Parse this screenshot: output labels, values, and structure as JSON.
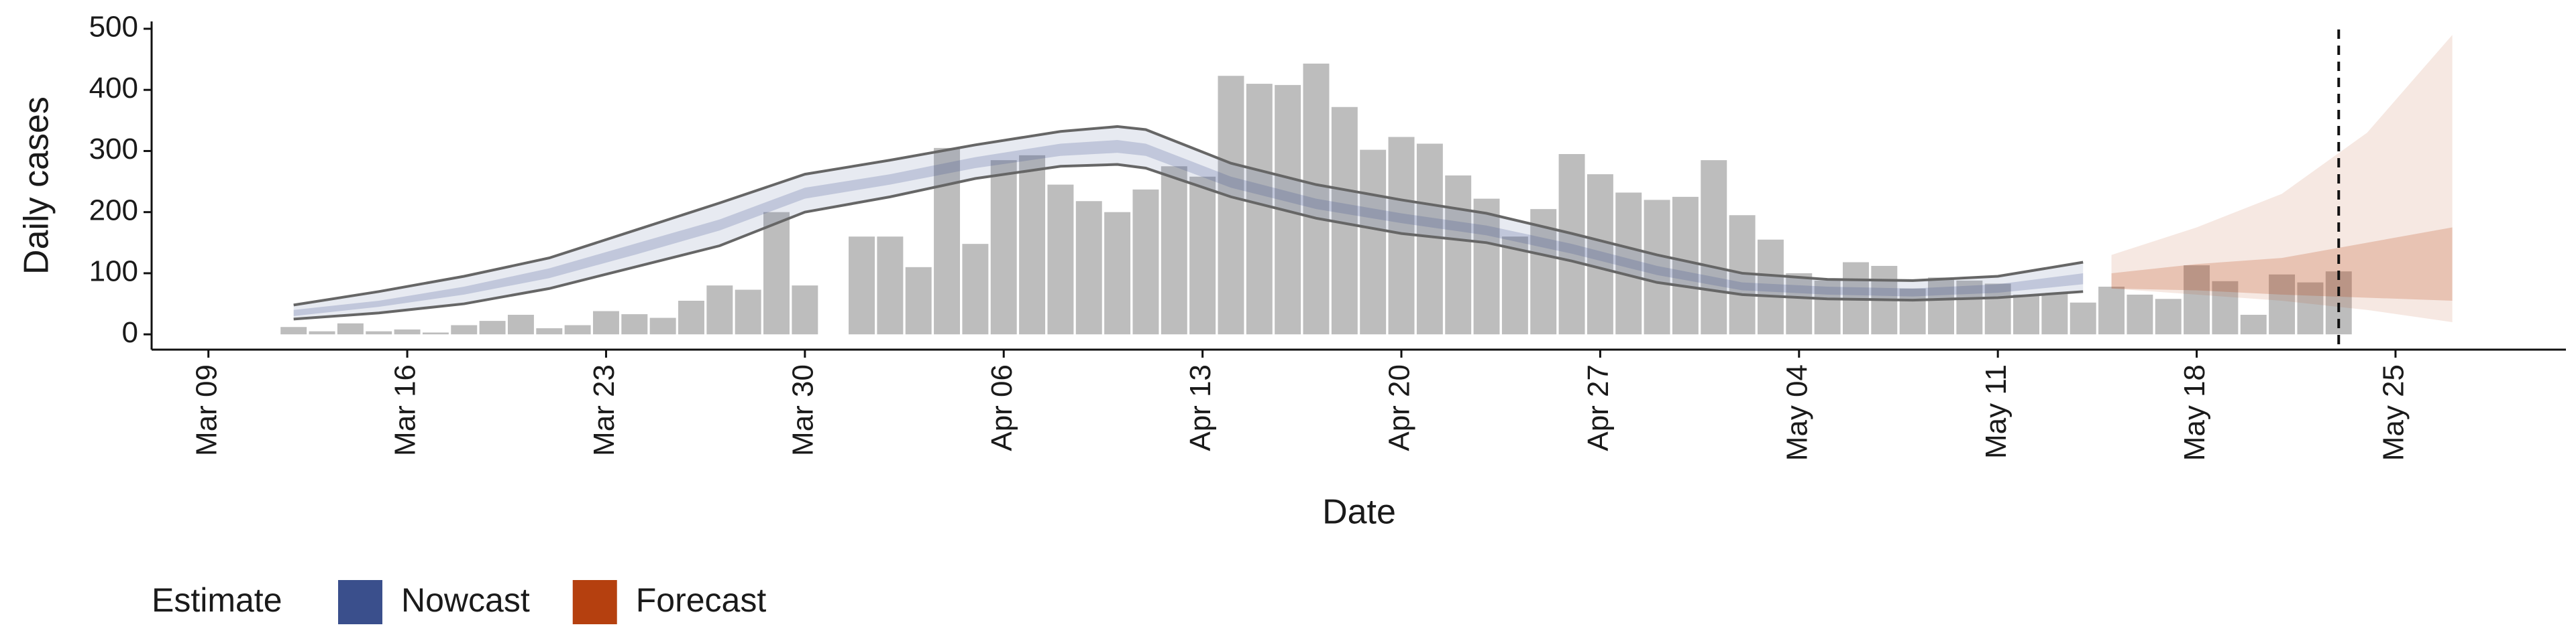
{
  "chart_data": {
    "type": "bar",
    "xlabel": "Date",
    "ylabel": "Daily cases",
    "color": "#bdbdbd",
    "x": [
      "Mar 12",
      "Mar 13",
      "Mar 14",
      "Mar 15",
      "Mar 16",
      "Mar 17",
      "Mar 18",
      "Mar 19",
      "Mar 20",
      "Mar 21",
      "Mar 22",
      "Mar 23",
      "Mar 24",
      "Mar 25",
      "Mar 26",
      "Mar 27",
      "Mar 28",
      "Mar 29",
      "Mar 30",
      "Mar 31",
      "Apr 01",
      "Apr 02",
      "Apr 03",
      "Apr 04",
      "Apr 05",
      "Apr 06",
      "Apr 07",
      "Apr 08",
      "Apr 09",
      "Apr 10",
      "Apr 11",
      "Apr 12",
      "Apr 13",
      "Apr 14",
      "Apr 15",
      "Apr 16",
      "Apr 17",
      "Apr 18",
      "Apr 19",
      "Apr 20",
      "Apr 21",
      "Apr 22",
      "Apr 23",
      "Apr 24",
      "Apr 25",
      "Apr 26",
      "Apr 27",
      "Apr 28",
      "Apr 29",
      "Apr 30",
      "May 01",
      "May 02",
      "May 03",
      "May 04",
      "May 05",
      "May 06",
      "May 07",
      "May 08",
      "May 09",
      "May 10",
      "May 11",
      "May 12",
      "May 13",
      "May 14",
      "May 15",
      "May 16",
      "May 17",
      "May 18",
      "May 19",
      "May 20",
      "May 21",
      "May 22",
      "May 23"
    ],
    "values": [
      12,
      5,
      18,
      5,
      8,
      3,
      15,
      22,
      32,
      10,
      15,
      38,
      33,
      27,
      55,
      80,
      73,
      200,
      80,
      null,
      160,
      160,
      110,
      305,
      148,
      285,
      293,
      245,
      218,
      200,
      237,
      275,
      258,
      423,
      410,
      408,
      443,
      372,
      302,
      323,
      312,
      260,
      222,
      160,
      205,
      295,
      262,
      232,
      220,
      225,
      285,
      195,
      155,
      100,
      88,
      118,
      112,
      75,
      93,
      88,
      83,
      65,
      67,
      52,
      78,
      65,
      58,
      113,
      87,
      32,
      98,
      85,
      103
    ],
    "xlim": [
      "Mar 07",
      "May 31"
    ],
    "xticks": [
      "Mar 09",
      "Mar 16",
      "Mar 23",
      "Mar 30",
      "Apr 06",
      "Apr 13",
      "Apr 20",
      "Apr 27",
      "May 04",
      "May 11",
      "May 18",
      "May 25"
    ],
    "ylim": [
      -25,
      512
    ],
    "yticks": [
      0,
      100,
      200,
      300,
      400,
      500
    ],
    "vline": "May 23",
    "legend_title": "Estimate",
    "bands": [
      {
        "name": "Nowcast",
        "color": "#3a4f8c",
        "outline_color": "#666666",
        "x": [
          "Mar 12",
          "Mar 15",
          "Mar 18",
          "Mar 21",
          "Mar 24",
          "Mar 27",
          "Mar 30",
          "Apr 02",
          "Apr 05",
          "Apr 08",
          "Apr 10",
          "Apr 11",
          "Apr 14",
          "Apr 17",
          "Apr 20",
          "Apr 23",
          "Apr 26",
          "Apr 29",
          "May 02",
          "May 05",
          "May 08",
          "May 11",
          "May 14"
        ],
        "lower": [
          25,
          35,
          50,
          75,
          110,
          145,
          200,
          225,
          255,
          275,
          278,
          272,
          225,
          190,
          165,
          150,
          120,
          85,
          65,
          58,
          56,
          60,
          70
        ],
        "upper": [
          48,
          70,
          95,
          125,
          170,
          215,
          262,
          285,
          310,
          332,
          340,
          335,
          280,
          245,
          220,
          198,
          165,
          130,
          100,
          90,
          88,
          95,
          118
        ],
        "lower50": [
          30,
          45,
          65,
          92,
          130,
          170,
          222,
          245,
          272,
          292,
          297,
          292,
          240,
          205,
          182,
          162,
          132,
          97,
          72,
          65,
          62,
          68,
          82
        ],
        "upper50": [
          40,
          55,
          78,
          108,
          148,
          188,
          240,
          262,
          290,
          312,
          318,
          312,
          258,
          222,
          198,
          178,
          148,
          112,
          85,
          78,
          75,
          82,
          100
        ]
      },
      {
        "name": "Forecast",
        "color": "#b5400f",
        "x": [
          "May 15",
          "May 18",
          "May 21",
          "May 24",
          "May 27"
        ],
        "lower": [
          75,
          65,
          55,
          40,
          20
        ],
        "upper": [
          130,
          175,
          230,
          330,
          490
        ],
        "lower50": [
          75,
          72,
          65,
          60,
          55
        ],
        "upper50": [
          100,
          115,
          125,
          150,
          175
        ]
      }
    ]
  }
}
